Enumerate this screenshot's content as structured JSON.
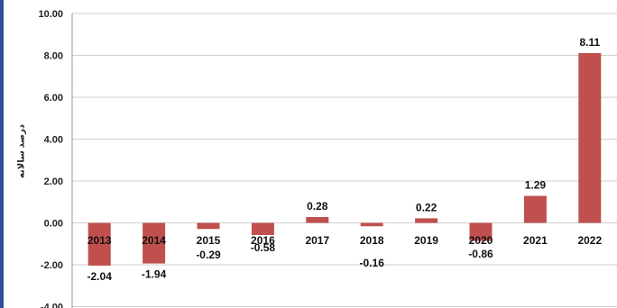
{
  "chart_data": {
    "type": "bar",
    "ylabel": "درصد سالانه",
    "xlabel": "",
    "categories": [
      "2013",
      "2014",
      "2015",
      "2016",
      "2017",
      "2018",
      "2019",
      "2020",
      "2021",
      "2022"
    ],
    "values": [
      -2.04,
      -1.94,
      -0.29,
      -0.58,
      0.28,
      -0.16,
      0.22,
      -0.86,
      1.29,
      8.11
    ],
    "value_labels": [
      "-2.04",
      "-1.94",
      "-0.29",
      "-0.58",
      "0.28",
      "-0.16",
      "0.22",
      "-0.86",
      "1.29",
      "8.11"
    ],
    "yticks": [
      "10.00",
      "8.00",
      "6.00",
      "4.00",
      "2.00",
      "0.00",
      "-2.00",
      "-4.00"
    ],
    "ylim": [
      -4,
      10
    ],
    "grid": true,
    "legend": "none",
    "bar_color": "#c0504d"
  }
}
